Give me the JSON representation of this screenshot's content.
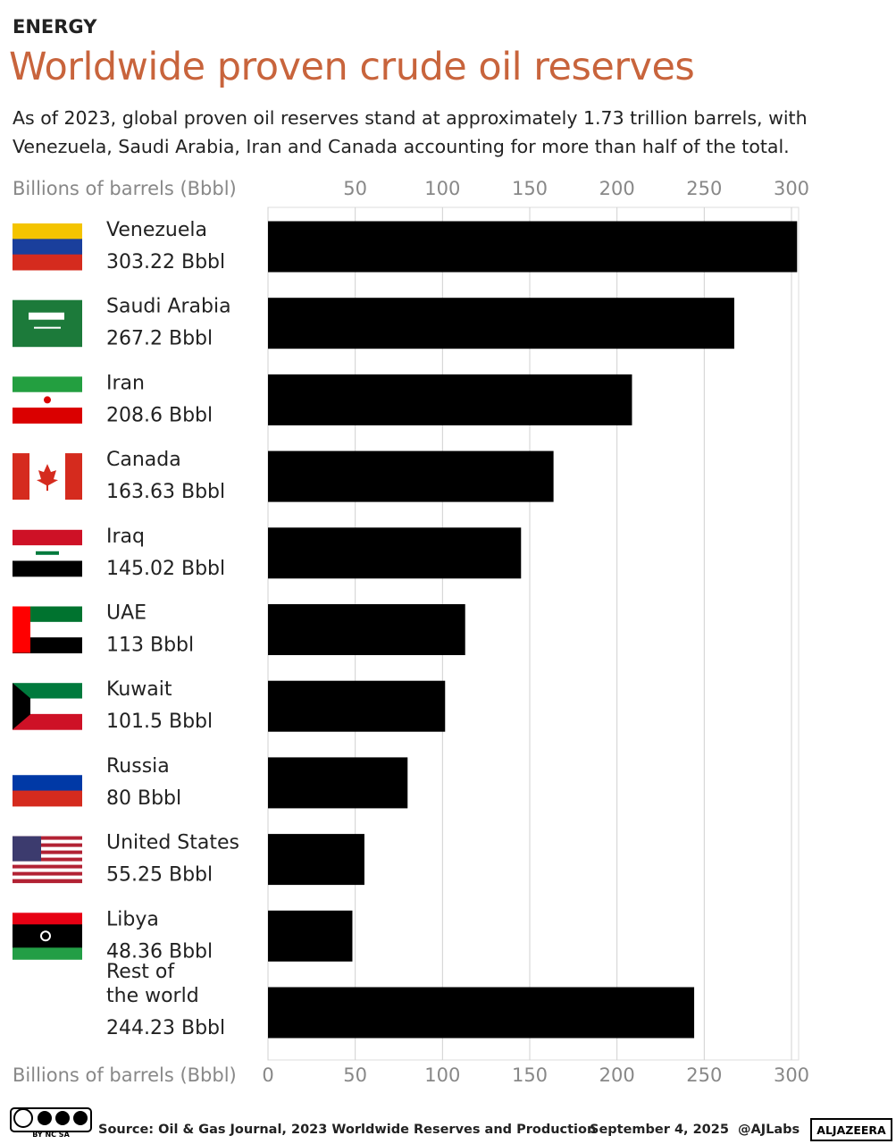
{
  "chart_data": {
    "type": "bar",
    "kicker": "ENERGY",
    "title": "Worldwide proven crude oil reserves",
    "subtitle": "As of 2023, global proven oil reserves stand at approximately 1.73 trillion barrels, with Venezuela, Saudi Arabia, Iran and Canada accounting for more than half of the total.",
    "x_label": "Billions of barrels (Bbbl)",
    "categories": [
      "Venezuela",
      "Saudi Arabia",
      "Iran",
      "Canada",
      "Iraq",
      "UAE",
      "Kuwait",
      "Russia",
      "United States",
      "Libya",
      "Rest of\nthe world"
    ],
    "values": [
      303.22,
      267.2,
      208.6,
      163.63,
      145.02,
      113,
      101.5,
      80,
      55.25,
      48.36,
      244.23
    ],
    "value_labels": [
      "303.22 Bbbl",
      "267.2 Bbbl",
      "208.6 Bbbl",
      "163.63 Bbbl",
      "145.02 Bbbl",
      "113 Bbbl",
      "101.5 Bbbl",
      "80 Bbbl",
      "55.25 Bbbl",
      "48.36 Bbbl",
      "244.23 Bbbl"
    ],
    "color": "#000000",
    "xlim": [
      0,
      300
    ],
    "xticks": [
      0,
      50,
      100,
      150,
      200,
      250,
      300
    ],
    "top_xticks": [
      50,
      100,
      150,
      200,
      250,
      300
    ],
    "grid": true,
    "source": "Source: Oil & Gas Journal, 2023 Worldwide Reserves and Production",
    "date": "September 4, 2025",
    "handle": "@AJLabs",
    "brand": "ALJAZEERA",
    "license": "BY NC SA"
  }
}
